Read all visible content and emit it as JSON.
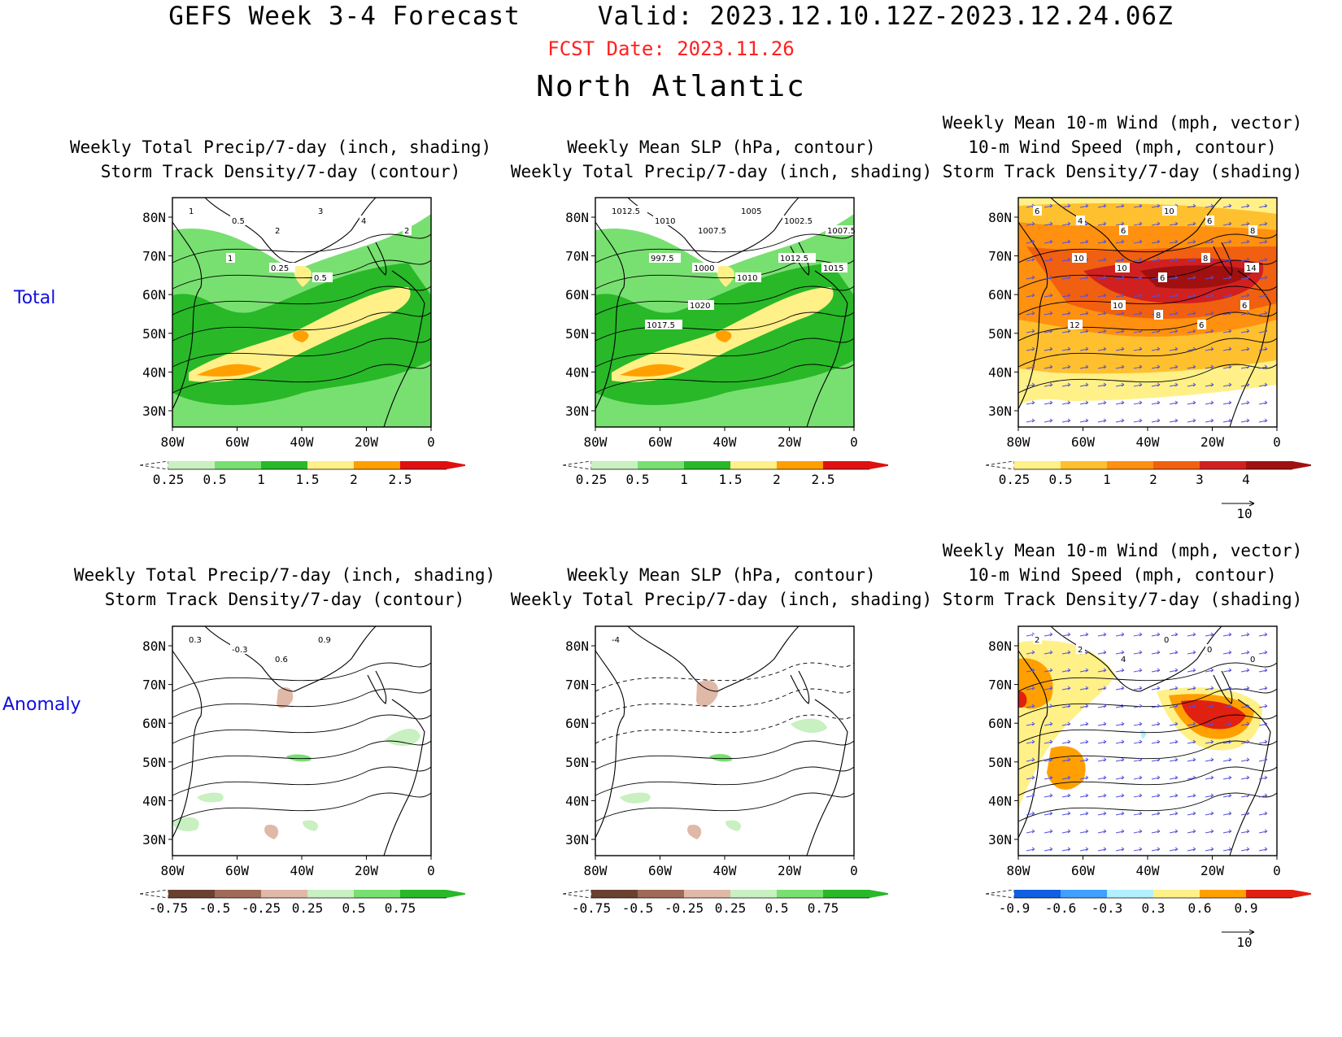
{
  "header": {
    "model": "GEFS Week 3-4 Forecast",
    "valid": "Valid: 2023.12.10.12Z-2023.12.24.06Z",
    "fcst_date": "FCST Date: 2023.11.26",
    "region": "North Atlantic"
  },
  "rows": {
    "total": "Total",
    "anomaly": "Anomaly"
  },
  "panels": {
    "precip_total": {
      "title_1": "Weekly Total Precip/7-day (inch, shading)",
      "title_2": "Storm Track Density/7-day (contour)",
      "contour_labels": [
        "1",
        "0.5",
        "2",
        "3",
        "4",
        "2",
        "1",
        "0.25",
        "0.5"
      ],
      "cbar": [
        "0.25",
        "0.5",
        "1",
        "1.5",
        "2",
        "2.5"
      ]
    },
    "slp_total": {
      "title_1": "Weekly Mean SLP (hPa, contour)",
      "title_2": "Weekly Total Precip/7-day (inch, shading)",
      "contour_labels": [
        "1012.5",
        "1010",
        "1007.5",
        "1005",
        "1002.5",
        "1007.5",
        "997.5",
        "1000",
        "1010",
        "1012.5",
        "1015",
        "1017.5",
        "1020"
      ],
      "cbar": [
        "0.25",
        "0.5",
        "1",
        "1.5",
        "2",
        "2.5"
      ]
    },
    "wind_total": {
      "title_1": "Weekly Mean 10-m Wind (mph, vector)",
      "title_2": "10-m Wind Speed (mph, contour)",
      "title_3": "Storm Track Density/7-day (shading)",
      "contour_labels": [
        "6",
        "4",
        "6",
        "10",
        "6",
        "8",
        "10",
        "10",
        "6",
        "8",
        "14",
        "12",
        "10",
        "8",
        "6",
        "6"
      ],
      "cbar": [
        "0.25",
        "0.5",
        "1",
        "2",
        "3",
        "4"
      ],
      "ref_vector": "10"
    },
    "precip_anom": {
      "title_1": "Weekly Total Precip/7-day (inch, shading)",
      "title_2": "Storm Track Density/7-day (contour)",
      "contour_labels": [
        "0.3",
        "-0.3",
        "0.6",
        "0.9"
      ],
      "cbar": [
        "-0.75",
        "-0.5",
        "-0.25",
        "0.25",
        "0.5",
        "0.75"
      ]
    },
    "slp_anom": {
      "title_1": "Weekly Mean SLP (hPa, contour)",
      "title_2": "Weekly Total Precip/7-day (inch, shading)",
      "contour_labels": [
        "-4"
      ],
      "cbar": [
        "-0.75",
        "-0.5",
        "-0.25",
        "0.25",
        "0.5",
        "0.75"
      ]
    },
    "wind_anom": {
      "title_1": "Weekly Mean 10-m Wind (mph, vector)",
      "title_2": "10-m Wind Speed (mph, contour)",
      "title_3": "Storm Track Density/7-day (shading)",
      "contour_labels": [
        "2",
        "2",
        "4",
        "0",
        "0",
        "0"
      ],
      "cbar": [
        "-0.9",
        "-0.6",
        "-0.3",
        "0.3",
        "0.6",
        "0.9"
      ],
      "ref_vector": "10"
    }
  },
  "axes": {
    "lat_labels": [
      "80N",
      "70N",
      "60N",
      "50N",
      "40N",
      "30N"
    ],
    "lon_labels": [
      "80W",
      "60W",
      "40W",
      "20W",
      "0"
    ]
  },
  "colors": {
    "precip_scale": [
      "#c8f0c0",
      "#78e070",
      "#28b828",
      "#fff088",
      "#ffa000",
      "#e01010"
    ],
    "anom_precip_scale": [
      "#6a4030",
      "#a06a58",
      "#e0b8a8",
      "#c8f0c0",
      "#78e070",
      "#28b828"
    ],
    "density_scale": [
      "#fff088",
      "#ffc030",
      "#ff9010",
      "#f06010",
      "#d02020",
      "#a01010"
    ],
    "anom_density_scale": [
      "#1060e0",
      "#40a0ff",
      "#b0f0ff",
      "#fff088",
      "#ffa000",
      "#e02010"
    ],
    "vector": "#5050e0",
    "fcst_date": "#ff2020",
    "row_label": "#1010e0"
  }
}
